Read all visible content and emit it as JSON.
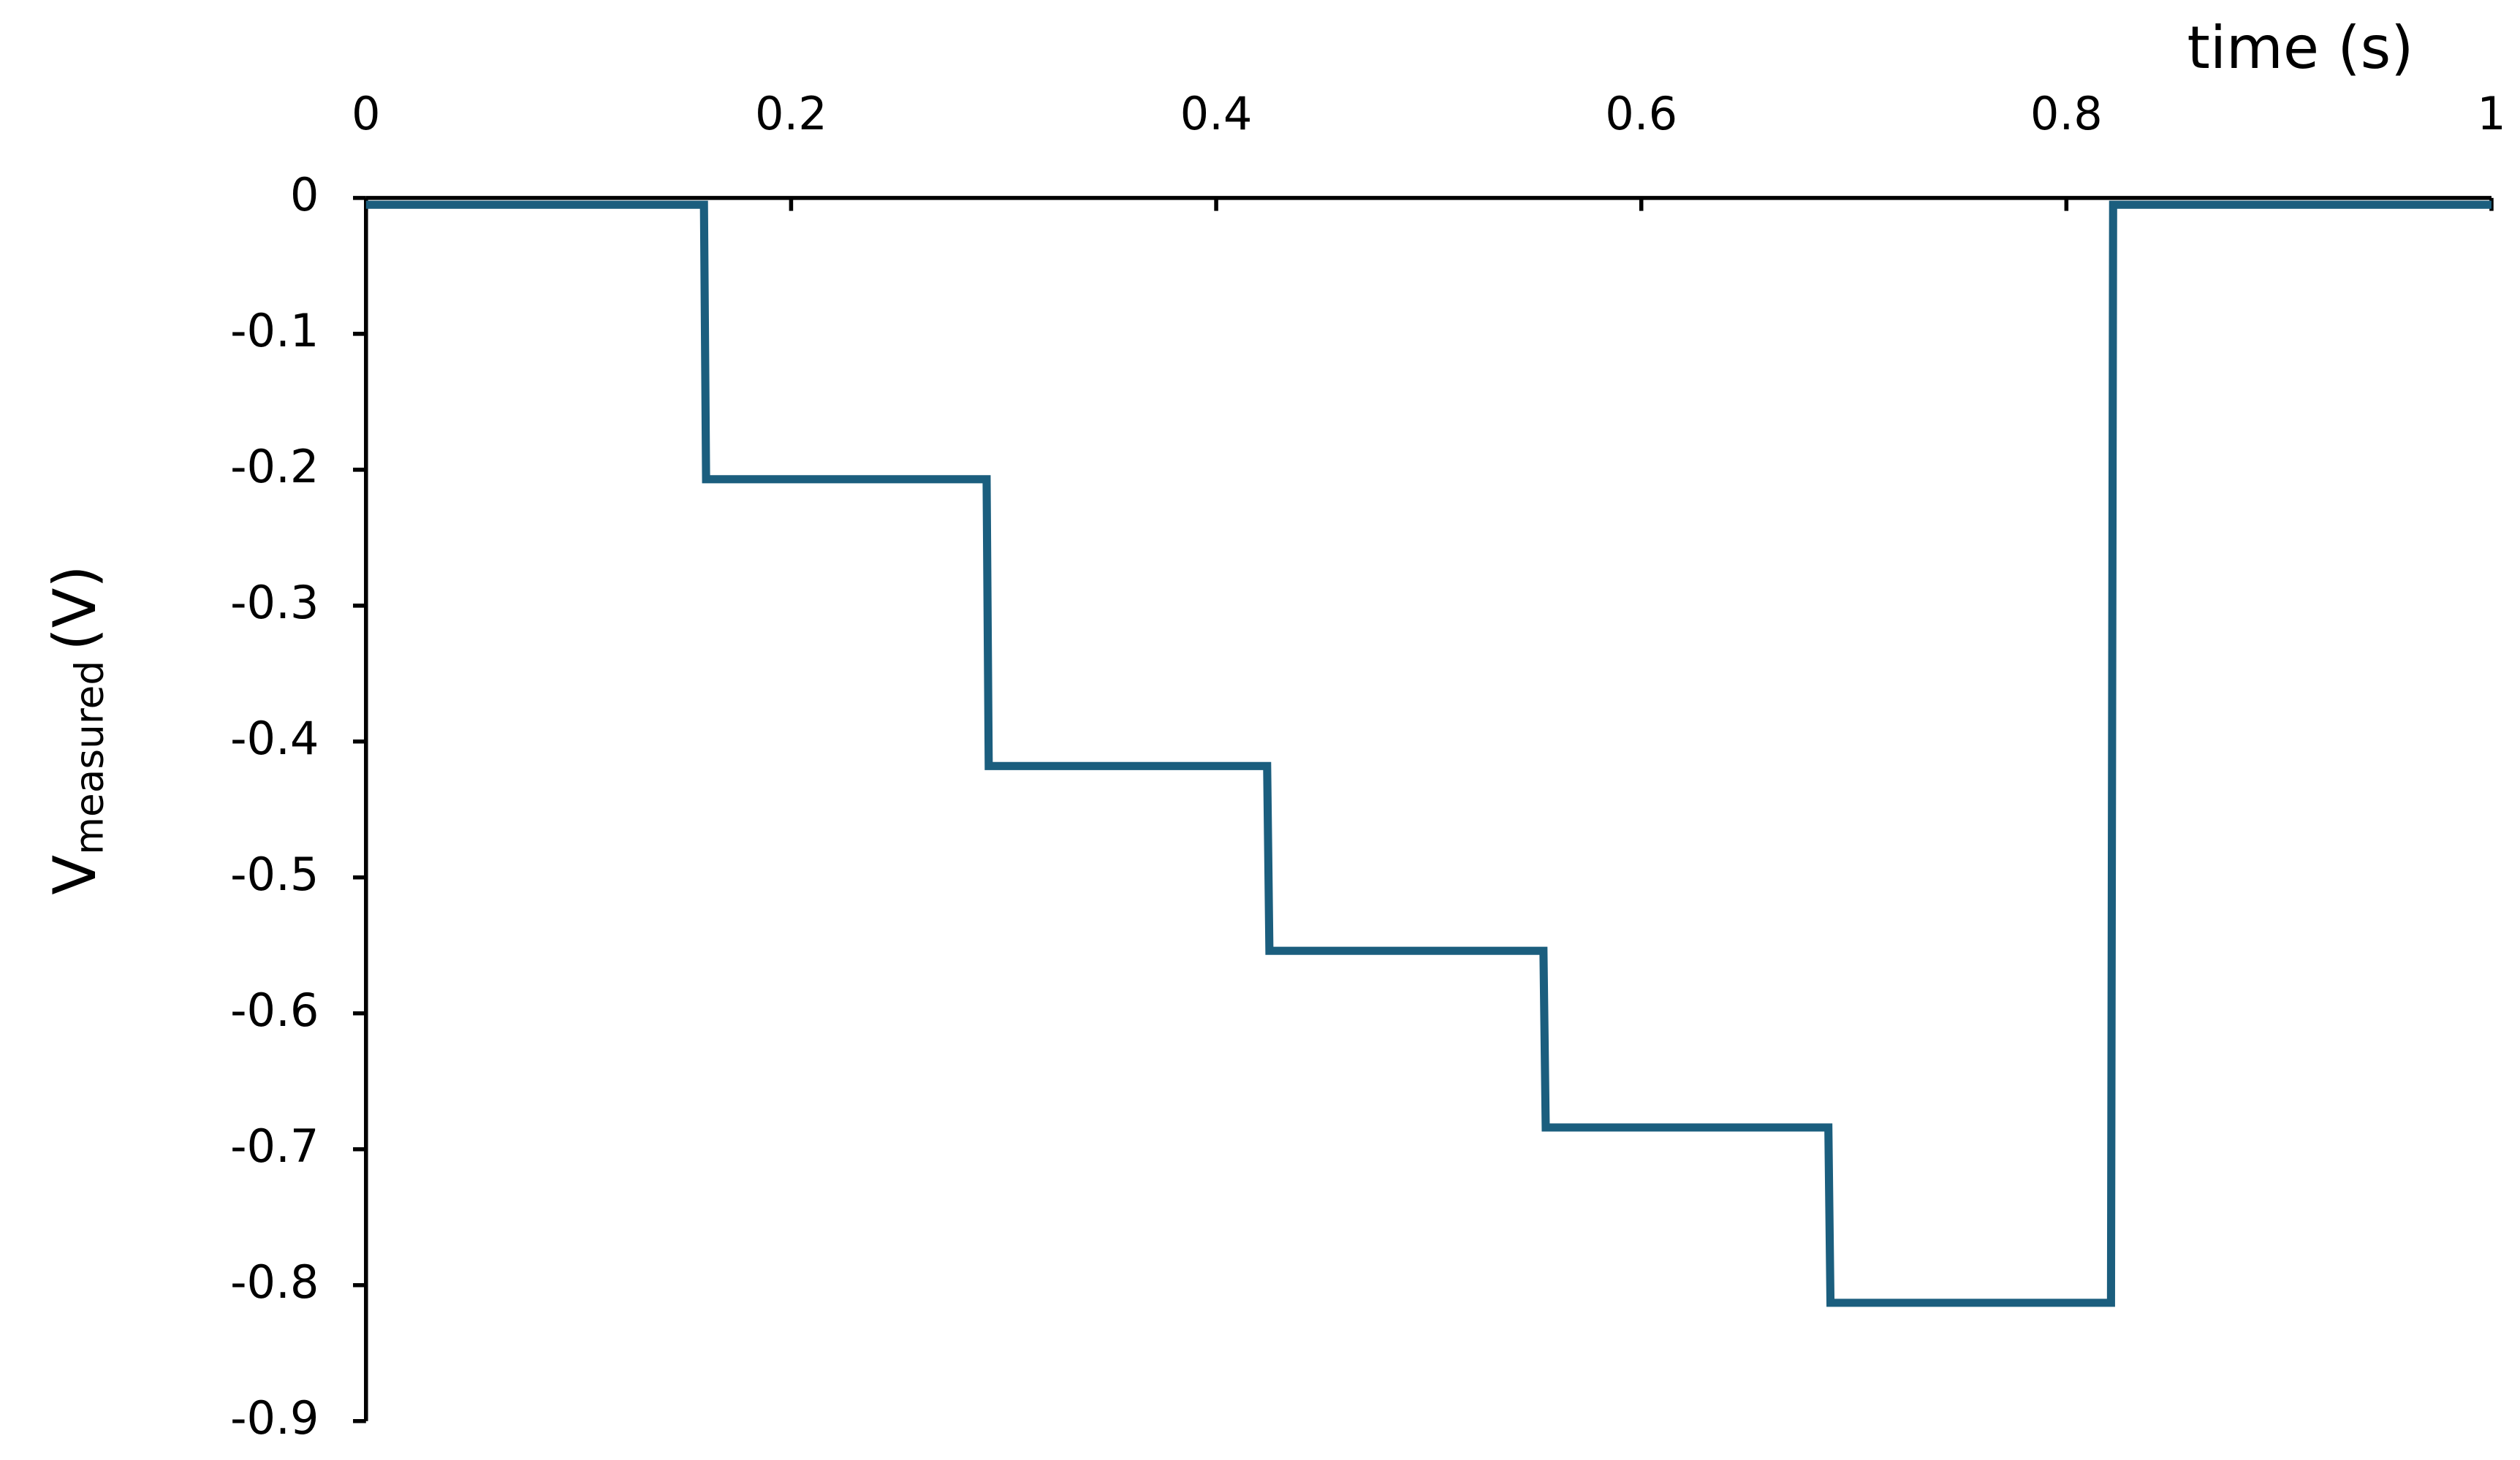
{
  "chart_data": {
    "type": "line",
    "xlabel": "time (s)",
    "ylabel": "V",
    "ylabel_subscript": "measured",
    "ylabel_unit": "(V)",
    "x": [
      0,
      0.159,
      0.16,
      0.292,
      0.293,
      0.424,
      0.425,
      0.554,
      0.555,
      0.688,
      0.689,
      0.821,
      0.822,
      1
    ],
    "series": [
      {
        "name": "V measured",
        "color": "#1b5e7e",
        "values": [
          -0.005,
          -0.005,
          -0.207,
          -0.207,
          -0.418,
          -0.418,
          -0.554,
          -0.554,
          -0.684,
          -0.684,
          -0.813,
          -0.813,
          -0.005,
          -0.005
        ]
      }
    ],
    "xlim": [
      0,
      1
    ],
    "xticks": [
      0,
      0.2,
      0.4,
      0.6,
      0.8,
      1
    ],
    "ylim": [
      -0.9,
      0
    ],
    "yticks": [
      0,
      -0.1,
      -0.2,
      -0.3,
      -0.4,
      -0.5,
      -0.6,
      -0.7,
      -0.8,
      -0.9
    ],
    "grid": false
  }
}
